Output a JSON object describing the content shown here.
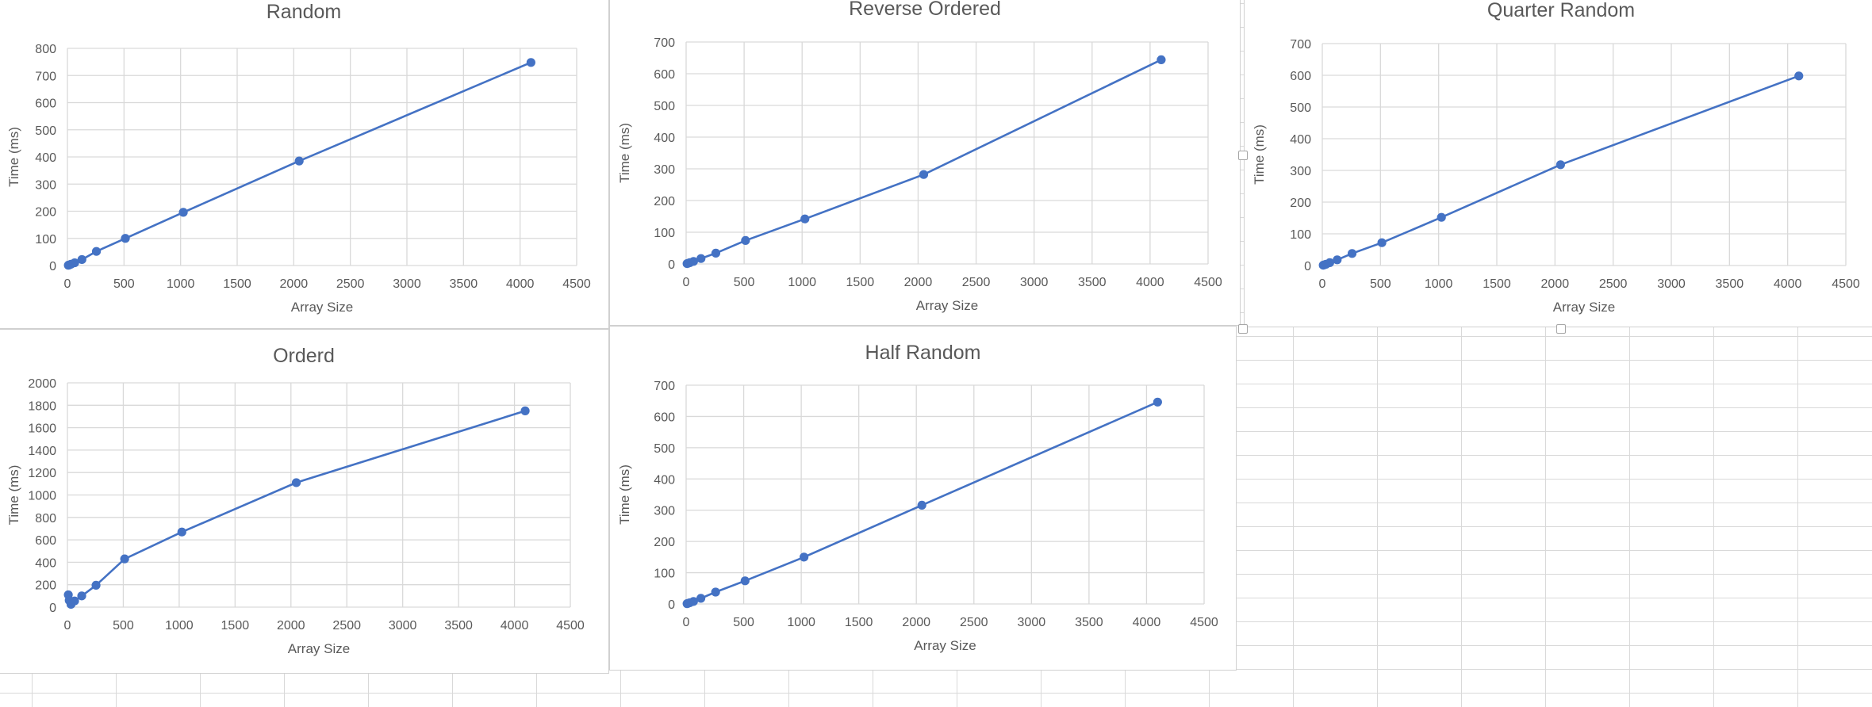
{
  "chart_data": [
    {
      "type": "scatter",
      "title": "Random",
      "xlabel": "Array Size",
      "ylabel": "Time (ms)",
      "xlim": [
        0,
        4500
      ],
      "ylim": [
        0,
        800
      ],
      "xticks": [
        0,
        500,
        1000,
        1500,
        2000,
        2500,
        3000,
        3500,
        4000,
        4500
      ],
      "yticks": [
        0,
        100,
        200,
        300,
        400,
        500,
        600,
        700,
        800
      ],
      "grid": true,
      "legend": "none",
      "series": [
        {
          "x": [
            8,
            16,
            32,
            64,
            128,
            256,
            512,
            1024,
            2048,
            4096
          ],
          "y": [
            1,
            2,
            5,
            10,
            22,
            52,
            100,
            196,
            385,
            748
          ]
        }
      ]
    },
    {
      "type": "scatter",
      "title": "Reverse Ordered",
      "xlabel": "Array Size",
      "ylabel": "Time (ms)",
      "xlim": [
        0,
        4500
      ],
      "ylim": [
        0,
        700
      ],
      "xticks": [
        0,
        500,
        1000,
        1500,
        2000,
        2500,
        3000,
        3500,
        4000,
        4500
      ],
      "yticks": [
        0,
        100,
        200,
        300,
        400,
        500,
        600,
        700
      ],
      "grid": true,
      "legend": "none",
      "series": [
        {
          "x": [
            8,
            16,
            32,
            64,
            128,
            256,
            512,
            1024,
            2048,
            4096
          ],
          "y": [
            1,
            2,
            4,
            8,
            17,
            34,
            74,
            142,
            282,
            644
          ]
        }
      ]
    },
    {
      "type": "scatter",
      "title": "Quarter Random",
      "xlabel": "Array Size",
      "ylabel": "Time (ms)",
      "xlim": [
        0,
        4500
      ],
      "ylim": [
        0,
        700
      ],
      "xticks": [
        0,
        500,
        1000,
        1500,
        2000,
        2500,
        3000,
        3500,
        4000,
        4500
      ],
      "yticks": [
        0,
        100,
        200,
        300,
        400,
        500,
        600,
        700
      ],
      "grid": true,
      "legend": "none",
      "series": [
        {
          "x": [
            8,
            16,
            32,
            64,
            128,
            256,
            512,
            1024,
            2048,
            4096
          ],
          "y": [
            1,
            2,
            4,
            9,
            18,
            38,
            72,
            152,
            318,
            598
          ]
        }
      ]
    },
    {
      "type": "scatter",
      "title": "Orderd",
      "xlabel": "Array Size",
      "ylabel": "Time (ms)",
      "xlim": [
        0,
        4500
      ],
      "ylim": [
        0,
        2000
      ],
      "xticks": [
        0,
        500,
        1000,
        1500,
        2000,
        2500,
        3000,
        3500,
        4000,
        4500
      ],
      "yticks": [
        0,
        200,
        400,
        600,
        800,
        1000,
        1200,
        1400,
        1600,
        1800,
        2000
      ],
      "grid": true,
      "legend": "none",
      "series": [
        {
          "x": [
            8,
            16,
            32,
            64,
            128,
            256,
            512,
            1024,
            2048,
            4096
          ],
          "y": [
            110,
            60,
            25,
            55,
            100,
            195,
            430,
            670,
            1110,
            1750
          ]
        }
      ]
    },
    {
      "type": "scatter",
      "title": "Half Random",
      "xlabel": "Array Size",
      "ylabel": "Time (ms)",
      "xlim": [
        0,
        4500
      ],
      "ylim": [
        0,
        700
      ],
      "xticks": [
        0,
        500,
        1000,
        1500,
        2000,
        2500,
        3000,
        3500,
        4000,
        4500
      ],
      "yticks": [
        0,
        100,
        200,
        300,
        400,
        500,
        600,
        700
      ],
      "grid": true,
      "legend": "none",
      "series": [
        {
          "x": [
            8,
            16,
            32,
            64,
            128,
            256,
            512,
            1024,
            2048,
            4096
          ],
          "y": [
            1,
            2,
            4,
            8,
            18,
            38,
            74,
            150,
            316,
            646
          ]
        }
      ]
    }
  ],
  "colors": {
    "series": "#4472c4",
    "gridline": "#d9d9d9",
    "text": "#595959",
    "cell_border": "#d9d9d9"
  }
}
